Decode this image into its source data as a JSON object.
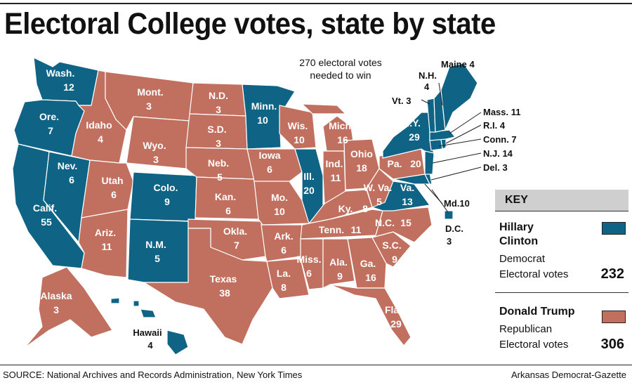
{
  "title": "Electoral College votes, state by state",
  "note": "270 electoral votes needed to win",
  "source": "SOURCE: National Archives and Records Administration, New York Times",
  "credit": "Arkansas Democrat-Gazette",
  "colors": {
    "dem": "#0f6385",
    "rep": "#c1705f"
  },
  "key": {
    "heading": "KEY",
    "dem": {
      "name_line1": "Hillary",
      "name_line2": "Clinton",
      "party": "Democrat",
      "label": "Electoral votes",
      "total": "232"
    },
    "rep": {
      "name": "Donald Trump",
      "party": "Republican",
      "label": "Electoral votes",
      "total": "306"
    }
  },
  "states": {
    "wa": {
      "name": "Wash.",
      "votes": "12"
    },
    "or": {
      "name": "Ore.",
      "votes": "7"
    },
    "ca": {
      "name": "Calif.",
      "votes": "55"
    },
    "nv": {
      "name": "Nev.",
      "votes": "6"
    },
    "id": {
      "name": "Idaho",
      "votes": "4"
    },
    "mt": {
      "name": "Mont.",
      "votes": "3"
    },
    "wy": {
      "name": "Wyo.",
      "votes": "3"
    },
    "ut": {
      "name": "Utah",
      "votes": "6"
    },
    "az": {
      "name": "Ariz.",
      "votes": "11"
    },
    "co": {
      "name": "Colo.",
      "votes": "9"
    },
    "nm": {
      "name": "N.M.",
      "votes": "5"
    },
    "nd": {
      "name": "N.D.",
      "votes": "3"
    },
    "sd": {
      "name": "S.D.",
      "votes": "3"
    },
    "ne": {
      "name": "Neb.",
      "votes": "5"
    },
    "ks": {
      "name": "Kan.",
      "votes": "6"
    },
    "ok": {
      "name": "Okla.",
      "votes": "7"
    },
    "tx": {
      "name": "Texas",
      "votes": "38"
    },
    "mn": {
      "name": "Minn.",
      "votes": "10"
    },
    "ia": {
      "name": "Iowa",
      "votes": "6"
    },
    "mo": {
      "name": "Mo.",
      "votes": "10"
    },
    "ar": {
      "name": "Ark.",
      "votes": "6"
    },
    "la": {
      "name": "La.",
      "votes": "8"
    },
    "wi": {
      "name": "Wis.",
      "votes": "10"
    },
    "il": {
      "name": "Ill.",
      "votes": "20"
    },
    "mi": {
      "name": "Mich.",
      "votes": "16"
    },
    "in": {
      "name": "Ind.",
      "votes": "11"
    },
    "oh": {
      "name": "Ohio",
      "votes": "18"
    },
    "ky": {
      "name": "Ky.",
      "votes": "8"
    },
    "tn": {
      "name": "Tenn.",
      "votes": "11"
    },
    "ms": {
      "name": "Miss.",
      "votes": "6"
    },
    "al": {
      "name": "Ala.",
      "votes": "9"
    },
    "ga": {
      "name": "Ga.",
      "votes": "16"
    },
    "fl": {
      "name": "Fla.",
      "votes": "29"
    },
    "sc": {
      "name": "S.C.",
      "votes": "9"
    },
    "nc": {
      "name": "N.C.",
      "votes": "15"
    },
    "va": {
      "name": "Va.",
      "votes": "13"
    },
    "wv": {
      "name": "W. Va.",
      "votes": "5"
    },
    "pa": {
      "name": "Pa.",
      "votes": "20"
    },
    "ny": {
      "name": "N.Y.",
      "votes": "29"
    },
    "ak": {
      "name": "Alaska",
      "votes": "3"
    },
    "hi": {
      "name": "Hawaii",
      "votes": "4"
    }
  },
  "callouts": {
    "me": "Maine 4",
    "nh_name": "N.H.",
    "nh_votes": "4",
    "vt": "Vt. 3",
    "ma": "Mass. 11",
    "ri": "R.I. 4",
    "ct": "Conn. 7",
    "nj": "N.J. 14",
    "de": "Del. 3",
    "md": "Md.10",
    "dc_name": "D.C.",
    "dc_votes": "3"
  }
}
